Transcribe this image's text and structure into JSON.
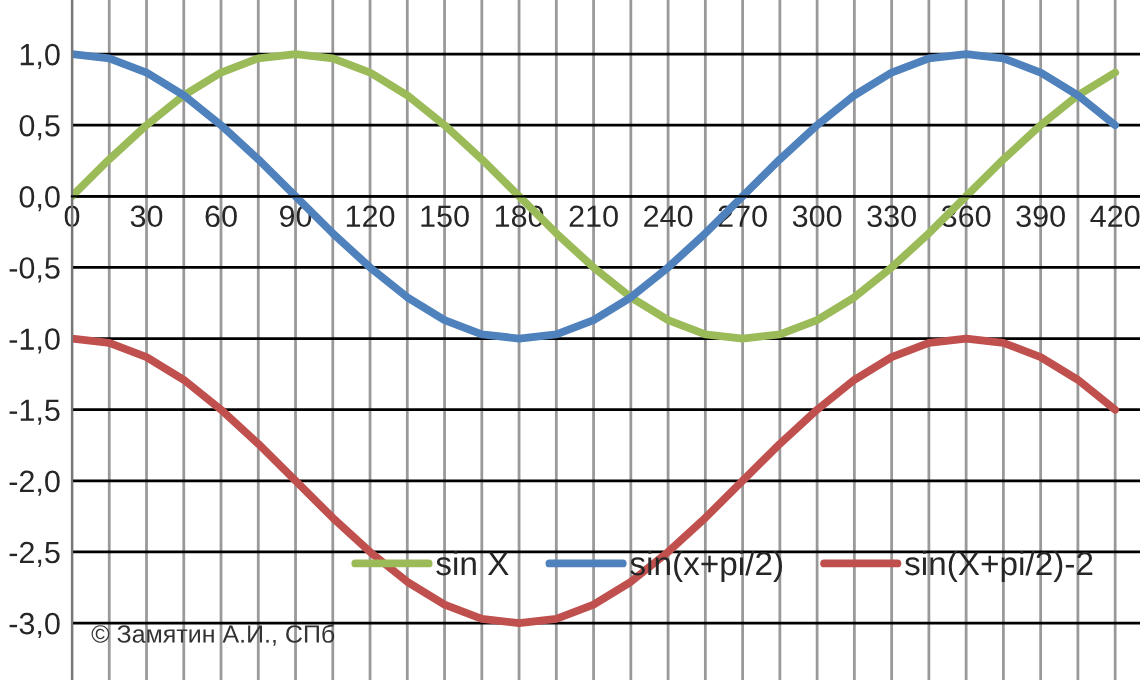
{
  "chart_data": {
    "type": "line",
    "x": [
      0,
      15,
      30,
      45,
      60,
      75,
      90,
      105,
      120,
      135,
      150,
      165,
      180,
      195,
      210,
      225,
      240,
      255,
      270,
      285,
      300,
      315,
      330,
      345,
      360,
      375,
      390,
      405,
      420
    ],
    "series": [
      {
        "name": "sin X",
        "color": "#9bbb59",
        "values": [
          0,
          0.26,
          0.5,
          0.71,
          0.87,
          0.97,
          1,
          0.97,
          0.87,
          0.71,
          0.5,
          0.26,
          0,
          -0.26,
          -0.5,
          -0.71,
          -0.87,
          -0.97,
          -1,
          -0.97,
          -0.87,
          -0.71,
          -0.5,
          -0.26,
          0,
          0.26,
          0.5,
          0.71,
          0.87
        ]
      },
      {
        "name": "sin(x+pi/2)",
        "color": "#4f81bd",
        "values": [
          1,
          0.97,
          0.87,
          0.71,
          0.5,
          0.26,
          0,
          -0.26,
          -0.5,
          -0.71,
          -0.87,
          -0.97,
          -1,
          -0.97,
          -0.87,
          -0.71,
          -0.5,
          -0.26,
          0,
          0.26,
          0.5,
          0.71,
          0.87,
          0.97,
          1,
          0.97,
          0.87,
          0.71,
          0.5
        ]
      },
      {
        "name": "sin(X+pi/2)-2",
        "color": "#c0504d",
        "values": [
          -1,
          -1.03,
          -1.13,
          -1.29,
          -1.5,
          -1.74,
          -2,
          -2.26,
          -2.5,
          -2.71,
          -2.87,
          -2.97,
          -3,
          -2.97,
          -2.87,
          -2.71,
          -2.5,
          -2.26,
          -2,
          -1.74,
          -1.5,
          -1.29,
          -1.13,
          -1.03,
          -1,
          -1.03,
          -1.13,
          -1.29,
          -1.5
        ]
      }
    ],
    "xlim": [
      0,
      430
    ],
    "xticks": [
      0,
      {
        "value": 15,
        "label": null
      },
      30,
      {
        "value": 45,
        "label": null
      },
      60,
      {
        "value": 75,
        "label": null
      },
      90,
      {
        "value": 105,
        "label": null
      },
      120,
      {
        "value": 135,
        "label": null
      },
      150,
      {
        "value": 165,
        "label": null
      },
      180,
      {
        "value": 195,
        "label": null
      },
      210,
      {
        "value": 225,
        "label": null
      },
      240,
      {
        "value": 255,
        "label": null
      },
      270,
      {
        "value": 285,
        "label": null
      },
      300,
      {
        "value": 315,
        "label": null
      },
      330,
      {
        "value": 345,
        "label": null
      },
      360,
      {
        "value": 375,
        "label": null
      },
      390,
      {
        "value": 405,
        "label": null
      },
      420
    ],
    "ylim": [
      -3.4,
      1.38
    ],
    "yticks": [
      {
        "value": -3,
        "label": "-3,0"
      },
      {
        "value": -2.5,
        "label": "-2,5"
      },
      {
        "value": -2,
        "label": "-2,0"
      },
      {
        "value": -1.5,
        "label": "-1,5"
      },
      {
        "value": -1,
        "label": "-1,0"
      },
      {
        "value": -0.5,
        "label": "-0,5"
      },
      {
        "value": 0,
        "label": "0,0"
      },
      {
        "value": 0.5,
        "label": "0,5"
      },
      {
        "value": 1,
        "label": "1,0"
      }
    ],
    "grid": true,
    "legend": "bottom right",
    "line_style": "solid",
    "marker": "none",
    "annotations": [
      "© Замятин А.И., СПб"
    ]
  }
}
